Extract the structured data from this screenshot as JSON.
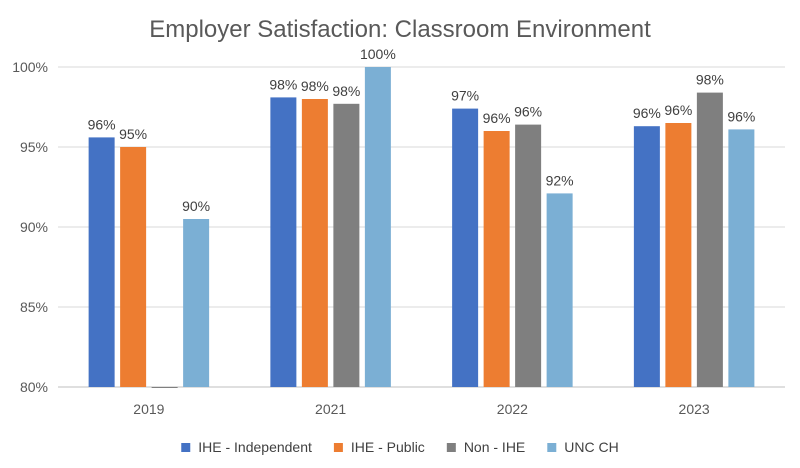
{
  "chart_data": {
    "type": "bar",
    "title": "Employer Satisfaction: Classroom Environment",
    "xlabel": "",
    "ylabel": "",
    "categories": [
      "2019",
      "2021",
      "2022",
      "2023"
    ],
    "ylim": [
      80,
      100
    ],
    "yticks": [
      80,
      85,
      90,
      95,
      100
    ],
    "ytick_labels": [
      "80%",
      "85%",
      "90%",
      "95%",
      "100%"
    ],
    "grid": true,
    "legend_position": "bottom",
    "series": [
      {
        "name": "IHE - Independent",
        "color": "#4472C4",
        "values": [
          95.6,
          98.1,
          97.4,
          96.3
        ],
        "labels": [
          "96%",
          "98%",
          "97%",
          "96%"
        ]
      },
      {
        "name": "IHE - Public",
        "color": "#ED7D31",
        "values": [
          95.0,
          98.0,
          96.0,
          96.5
        ],
        "labels": [
          "95%",
          "98%",
          "96%",
          "96%"
        ]
      },
      {
        "name": "Non - IHE",
        "color": "#7F7F7F",
        "values": [
          80.0,
          97.7,
          96.4,
          98.4
        ],
        "labels": [
          "",
          "98%",
          "96%",
          "98%"
        ]
      },
      {
        "name": "UNC CH",
        "color": "#7BAFD4",
        "values": [
          90.5,
          100.0,
          92.1,
          96.1
        ],
        "labels": [
          "90%",
          "100%",
          "92%",
          "96%"
        ]
      }
    ]
  }
}
